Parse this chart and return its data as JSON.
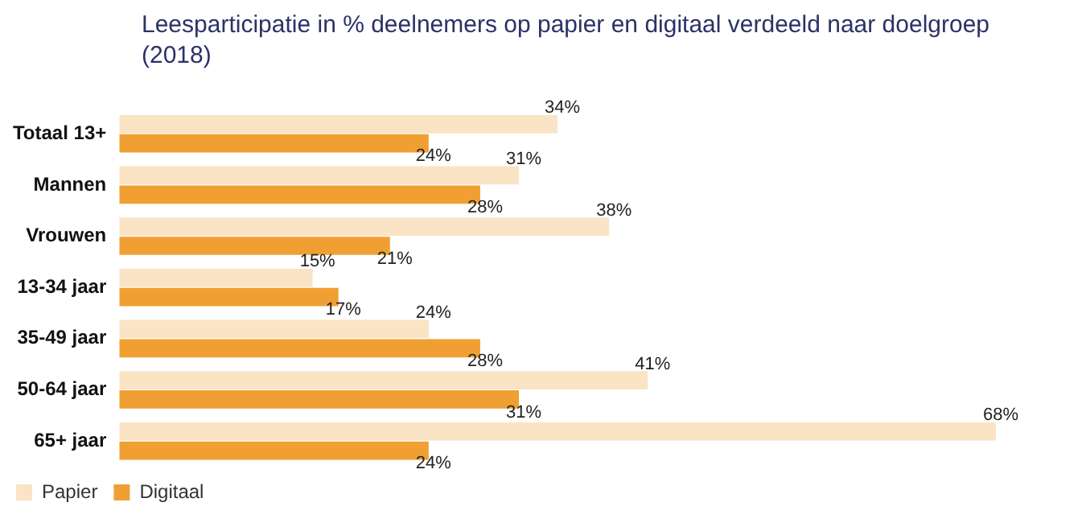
{
  "chart_data": {
    "type": "bar",
    "orientation": "horizontal",
    "title": "Leesparticipatie in % deelnemers op papier en digitaal verdeeld naar doelgroep (2018)",
    "categories": [
      "Totaal 13+",
      "Mannen",
      "Vrouwen",
      "13-34 jaar",
      "35-49 jaar",
      "50-64 jaar",
      "65+ jaar"
    ],
    "series": [
      {
        "name": "Papier",
        "color": "#fbe3c6",
        "values": [
          34,
          31,
          38,
          15,
          24,
          41,
          68
        ],
        "value_labels": [
          "34%",
          "31%",
          "38%",
          "15%",
          "24%",
          "41%",
          "68%"
        ]
      },
      {
        "name": "Digitaal",
        "color": "#f0a032",
        "values": [
          24,
          28,
          21,
          17,
          28,
          31,
          24
        ],
        "value_labels": [
          "24%",
          "28%",
          "21%",
          "17%",
          "28%",
          "31%",
          "24%"
        ]
      }
    ],
    "legend": "bottom left",
    "grid": false,
    "tick_labels": "y"
  }
}
